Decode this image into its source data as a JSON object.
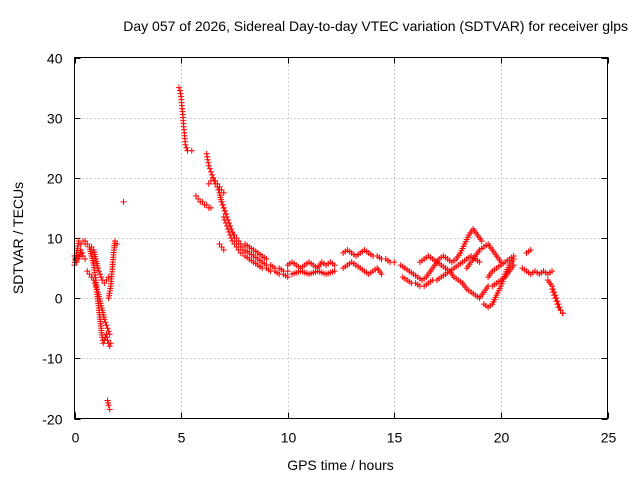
{
  "chart_data": {
    "type": "scatter",
    "title": "Day 057 of 2026, Sidereal Day-to-day VTEC variation (SDTVAR) for receiver glps",
    "xlabel": "GPS time / hours",
    "ylabel": "SDTVAR / TECUs",
    "xlim": [
      0,
      25
    ],
    "ylim": [
      -20,
      40
    ],
    "xticks": [
      0,
      5,
      10,
      15,
      20,
      25
    ],
    "yticks": [
      -20,
      -10,
      0,
      10,
      20,
      30,
      40
    ],
    "grid": true,
    "marker": "+",
    "color": "#ff0000",
    "series": [
      {
        "name": "SDTVAR",
        "segments": [
          {
            "x": [
              0.0,
              0.1,
              0.2,
              0.3,
              0.4,
              0.5
            ],
            "y": [
              5.5,
              7.5,
              9.5,
              9.0,
              9.5,
              9.0
            ]
          },
          {
            "x": [
              0.0,
              0.1,
              0.2,
              0.3,
              0.4,
              0.5
            ],
            "y": [
              7.0,
              6.0,
              6.5,
              8.0,
              7.0,
              6.5
            ]
          },
          {
            "x": [
              0.5,
              0.6,
              0.7,
              0.8,
              0.9,
              1.0,
              1.05,
              1.1,
              1.15,
              1.2,
              1.25,
              1.3,
              1.35,
              1.4,
              1.45,
              1.5,
              1.55,
              1.6,
              1.65,
              1.7
            ],
            "y": [
              9.5,
              9.0,
              8.5,
              7.0,
              5.5,
              3.0,
              1.0,
              -0.5,
              -2.0,
              -3.5,
              -5.0,
              -6.5,
              -7.5,
              -7.0,
              -6.5,
              -6.0,
              -7.0,
              -7.5,
              -8.0,
              -7.5
            ]
          },
          {
            "x": [
              0.6,
              0.7,
              0.8,
              0.9,
              1.0,
              1.1,
              1.2,
              1.3,
              1.4,
              1.5,
              1.6,
              1.65
            ],
            "y": [
              4.5,
              4.0,
              3.5,
              3.0,
              2.0,
              1.0,
              -0.5,
              -2.0,
              -3.5,
              -4.5,
              -5.5,
              -6.0
            ]
          },
          {
            "x": [
              0.8,
              0.9,
              1.0,
              1.1,
              1.2,
              1.3,
              1.4,
              1.5,
              1.6
            ],
            "y": [
              8.5,
              8.0,
              6.5,
              5.0,
              4.0,
              3.0,
              2.5,
              3.0,
              3.5
            ]
          },
          {
            "x": [
              1.6,
              1.7,
              1.75,
              1.8,
              1.85,
              1.9,
              2.0
            ],
            "y": [
              0.0,
              2.0,
              4.0,
              6.0,
              8.0,
              9.5,
              9.0
            ]
          },
          {
            "x": [
              1.55,
              1.6,
              1.65
            ],
            "y": [
              -17.0,
              -17.8,
              -18.5
            ]
          },
          {
            "x": [
              2.3
            ],
            "y": [
              16.0
            ]
          },
          {
            "x": [
              4.9,
              4.95,
              5.0,
              5.02,
              5.05,
              5.08,
              5.1,
              5.12,
              5.15,
              5.18,
              5.2,
              5.25,
              5.3
            ],
            "y": [
              35.0,
              34.5,
              33.5,
              32.5,
              31.5,
              30.5,
              29.5,
              28.5,
              27.5,
              26.5,
              25.5,
              25.0,
              24.5
            ]
          },
          {
            "x": [
              5.5
            ],
            "y": [
              24.5
            ]
          },
          {
            "x": [
              5.7,
              5.8,
              5.9,
              6.0,
              6.1,
              6.2,
              6.3,
              6.4
            ],
            "y": [
              17.0,
              16.5,
              16.0,
              16.0,
              15.5,
              15.5,
              15.0,
              15.0
            ]
          },
          {
            "x": [
              6.2,
              6.25,
              6.3,
              6.35,
              6.4,
              6.45,
              6.5,
              6.55,
              6.6,
              6.7,
              6.8,
              6.9,
              7.0,
              7.1,
              7.2,
              7.3,
              7.4,
              7.5,
              7.6,
              7.7,
              7.8,
              7.9,
              8.0
            ],
            "y": [
              24.0,
              23.0,
              22.0,
              21.5,
              21.0,
              20.5,
              20.0,
              19.5,
              19.0,
              18.5,
              17.5,
              16.0,
              15.0,
              14.0,
              13.0,
              12.0,
              11.0,
              10.0,
              9.5,
              9.0,
              8.5,
              8.0,
              8.0
            ]
          },
          {
            "x": [
              6.3,
              6.4,
              6.5,
              6.6,
              6.7,
              6.8,
              6.9,
              7.0
            ],
            "y": [
              19.0,
              19.5,
              20.0,
              19.5,
              19.0,
              18.5,
              18.0,
              17.5
            ]
          },
          {
            "x": [
              6.9,
              7.0,
              7.1,
              7.2,
              7.3,
              7.4,
              7.5,
              7.6,
              7.7,
              7.8,
              7.9,
              8.0,
              8.2,
              8.4,
              8.6,
              8.8,
              9.0,
              9.2,
              9.4,
              9.6,
              9.8,
              10.0
            ],
            "y": [
              16.0,
              15.0,
              14.0,
              13.0,
              12.0,
              11.0,
              10.5,
              10.0,
              9.5,
              9.0,
              8.5,
              8.0,
              7.5,
              7.0,
              6.5,
              6.0,
              5.5,
              5.5,
              5.0,
              5.0,
              4.5,
              4.5
            ]
          },
          {
            "x": [
              7.0,
              7.1,
              7.2,
              7.3,
              7.4,
              7.5,
              7.6,
              7.7,
              7.8,
              7.9,
              8.0,
              8.2,
              8.4,
              8.6,
              8.8,
              9.0,
              9.2,
              9.4,
              9.6,
              9.8,
              10.0
            ],
            "y": [
              13.5,
              12.5,
              11.5,
              10.5,
              9.5,
              9.0,
              8.5,
              8.0,
              7.5,
              7.5,
              7.0,
              6.5,
              6.0,
              5.5,
              5.0,
              5.0,
              4.5,
              4.5,
              4.0,
              4.0,
              3.5
            ]
          },
          {
            "x": [
              6.8,
              6.9,
              7.0
            ],
            "y": [
              9.0,
              8.5,
              8.0
            ]
          },
          {
            "x": [
              8.0,
              8.2,
              8.4,
              8.6,
              8.8,
              9.0
            ],
            "y": [
              9.0,
              8.5,
              8.0,
              7.5,
              7.0,
              6.5
            ]
          },
          {
            "x": [
              10.0,
              10.2,
              10.4,
              10.6,
              10.8,
              11.0,
              11.2,
              11.4,
              11.6,
              11.8,
              12.0,
              12.2
            ],
            "y": [
              5.5,
              6.0,
              5.5,
              5.0,
              5.5,
              6.0,
              5.5,
              5.0,
              6.0,
              5.5,
              6.0,
              5.5
            ]
          },
          {
            "x": [
              10.2,
              10.6,
              11.0,
              11.4,
              11.8,
              12.2
            ],
            "y": [
              4.0,
              4.5,
              4.0,
              4.5,
              4.0,
              4.5
            ]
          },
          {
            "x": [
              12.6,
              12.8,
              13.0,
              13.2,
              13.4,
              13.6,
              13.8,
              14.0,
              14.2,
              14.4,
              14.6,
              14.8,
              15.0
            ],
            "y": [
              7.5,
              8.0,
              7.5,
              7.0,
              7.5,
              8.0,
              7.5,
              7.0,
              7.0,
              6.5,
              6.5,
              6.0,
              6.0
            ]
          },
          {
            "x": [
              12.6,
              12.8,
              13.0,
              13.2,
              13.4,
              13.6,
              13.8,
              14.0,
              14.2,
              14.4
            ],
            "y": [
              5.0,
              5.5,
              6.0,
              5.5,
              5.0,
              4.5,
              4.0,
              4.5,
              5.0,
              4.0
            ]
          },
          {
            "x": [
              15.3,
              15.5,
              15.7,
              15.9,
              16.1,
              16.3,
              16.5,
              16.7,
              16.9,
              17.1,
              17.3,
              17.5,
              17.7,
              17.9,
              18.1,
              18.3,
              18.5,
              18.7,
              18.9,
              19.1
            ],
            "y": [
              5.5,
              5.0,
              4.5,
              4.0,
              3.5,
              3.0,
              3.5,
              4.5,
              5.5,
              6.5,
              7.0,
              6.5,
              6.0,
              6.5,
              7.5,
              9.0,
              10.5,
              11.5,
              10.5,
              9.5
            ]
          },
          {
            "x": [
              15.4,
              15.6,
              15.8,
              16.0,
              16.2,
              16.4,
              16.6,
              16.8,
              17.0,
              17.2,
              17.4,
              17.6,
              17.8,
              18.0,
              18.2,
              18.4,
              18.6,
              18.8,
              19.0
            ],
            "y": [
              3.5,
              3.0,
              2.5,
              2.5,
              2.0,
              2.0,
              2.5,
              3.0,
              3.0,
              3.5,
              4.0,
              4.5,
              5.0,
              5.5,
              6.0,
              6.5,
              7.0,
              6.5,
              6.0
            ]
          },
          {
            "x": [
              16.2,
              16.4,
              16.6,
              16.8,
              17.0,
              17.2,
              17.4,
              17.6,
              17.8,
              18.0,
              18.2,
              18.4,
              18.6,
              18.8,
              19.0,
              19.2,
              19.4
            ],
            "y": [
              6.0,
              6.5,
              7.0,
              6.5,
              6.0,
              5.5,
              5.0,
              4.5,
              3.5,
              3.0,
              2.5,
              1.5,
              1.0,
              0.5,
              0.0,
              1.0,
              2.0
            ]
          },
          {
            "x": [
              18.4,
              18.6,
              18.8,
              19.0,
              19.2,
              19.4,
              19.6,
              19.8,
              20.0
            ],
            "y": [
              5.0,
              6.0,
              7.0,
              8.0,
              8.5,
              9.0,
              8.0,
              7.0,
              6.0
            ]
          },
          {
            "x": [
              19.2,
              19.4,
              19.6,
              19.8,
              20.0,
              20.2,
              20.4,
              20.6
            ],
            "y": [
              -1.0,
              -1.5,
              -1.0,
              0.5,
              2.0,
              4.0,
              5.5,
              6.5
            ]
          },
          {
            "x": [
              19.4,
              19.6,
              19.8,
              20.0,
              20.2,
              20.4,
              20.6
            ],
            "y": [
              3.5,
              4.5,
              5.0,
              5.5,
              6.0,
              6.5,
              7.0
            ]
          },
          {
            "x": [
              19.6,
              19.8,
              20.0,
              20.2,
              20.4,
              20.6
            ],
            "y": [
              2.0,
              2.5,
              3.0,
              3.5,
              4.5,
              5.5
            ]
          },
          {
            "x": [
              21.0,
              21.2,
              21.4,
              21.6,
              21.8,
              22.0,
              22.2,
              22.4
            ],
            "y": [
              5.0,
              4.5,
              4.0,
              4.5,
              4.0,
              4.5,
              4.0,
              4.5
            ]
          },
          {
            "x": [
              21.2,
              21.4
            ],
            "y": [
              7.5,
              8.0
            ]
          },
          {
            "x": [
              22.2,
              22.4,
              22.5,
              22.6,
              22.7,
              22.8,
              22.9
            ],
            "y": [
              3.0,
              2.0,
              1.0,
              0.0,
              -1.0,
              -2.0,
              -2.5
            ]
          },
          {
            "x": [
              22.4,
              22.5,
              22.6,
              22.7,
              22.8,
              22.9
            ],
            "y": [
              1.5,
              0.5,
              -0.5,
              -1.5,
              -2.0,
              -2.5
            ]
          }
        ]
      }
    ]
  }
}
